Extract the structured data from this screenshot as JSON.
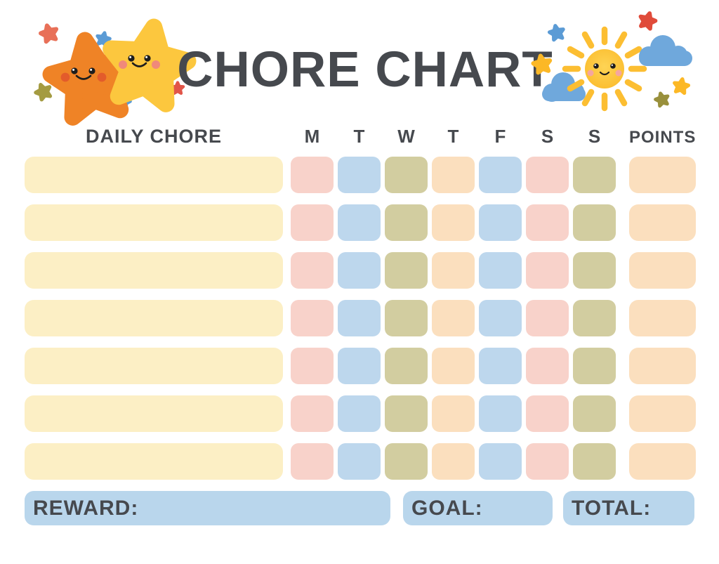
{
  "page": {
    "title_text": "CHORE CHART"
  },
  "decorations": {
    "left_illustration": "two-smiling-stars",
    "right_illustration": "smiling-sun-with-clouds"
  },
  "table": {
    "chore_header": "DAILY CHORE",
    "day_headers": [
      "M",
      "T",
      "W",
      "T",
      "F",
      "S",
      "S"
    ],
    "points_header": "POINTS",
    "num_rows": 7,
    "row_cells": {
      "chore_color": "#fcefc5",
      "day_colors": [
        "#f8d2ca",
        "#bdd7ed",
        "#d2cda0",
        "#fbdfbe",
        "#bdd7ed",
        "#f8d2ca",
        "#d2cda0"
      ],
      "points_color": "#fbdfbe"
    }
  },
  "footer": {
    "reward_label": "REWARD:",
    "goal_label": "GOAL:",
    "total_label": "TOTAL:"
  },
  "colors": {
    "text_dark": "#46494e",
    "footer_box": "#b9d6ec",
    "chore_cream": "#fcefc5",
    "accent_yellow": "#fcc43d",
    "accent_orange": "#ef8326",
    "accent_blue": "#6fa8dc",
    "accent_red": "#e25549",
    "accent_olive": "#a49b41"
  }
}
